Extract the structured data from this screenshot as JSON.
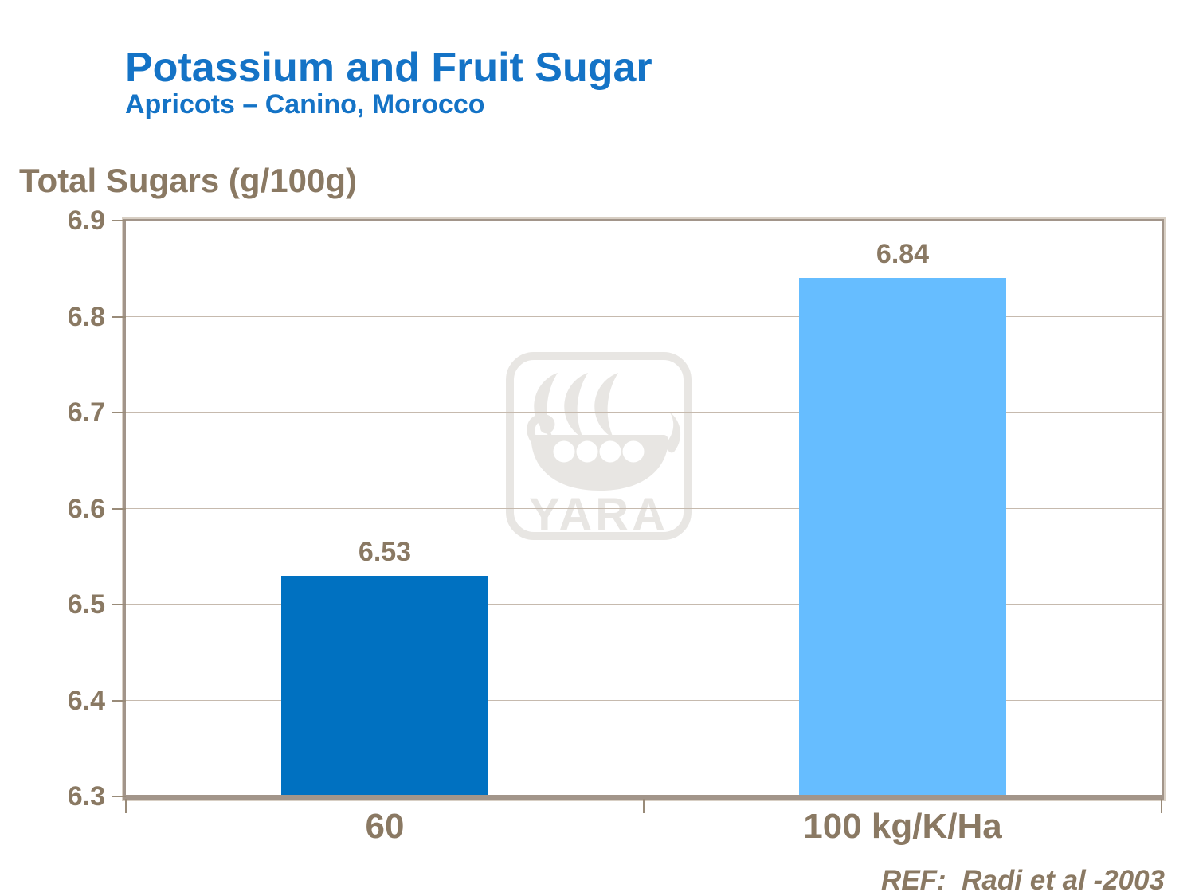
{
  "slide": {
    "title": "Potassium and Fruit Sugar",
    "subtitle": "Apricots – Canino, Morocco",
    "reference": "REF:  Radi et al -2003"
  },
  "watermark": {
    "brand": "YARA",
    "icon": "viking-ship-logo"
  },
  "colors": {
    "title_blue": "#1473C6",
    "text_brown": "#8A7963",
    "axis_line": "#A2958A",
    "gridline": "#C6BAAE",
    "tick": "#998B79",
    "bar_dark_blue": "#0071C1",
    "bar_light_blue": "#66BDFF",
    "watermark_gray": "#E8E6E3"
  },
  "chart_data": {
    "type": "bar",
    "title": "Potassium and Fruit Sugar",
    "subtitle": "Apricots – Canino, Morocco",
    "ylabel": "Total Sugars (g/100g)",
    "xlabel": "",
    "categories": [
      "60",
      "100 kg/K/Ha"
    ],
    "values": [
      6.53,
      6.84
    ],
    "data_labels": [
      "6.53",
      "6.84"
    ],
    "bar_colors": [
      "#0071C1",
      "#66BDFF"
    ],
    "ylim": [
      6.3,
      6.9
    ],
    "yticks": [
      6.9,
      6.8,
      6.7,
      6.6,
      6.5,
      6.4,
      6.3
    ],
    "grid": true,
    "legend": false,
    "reference": "REF:  Radi et al -2003"
  }
}
